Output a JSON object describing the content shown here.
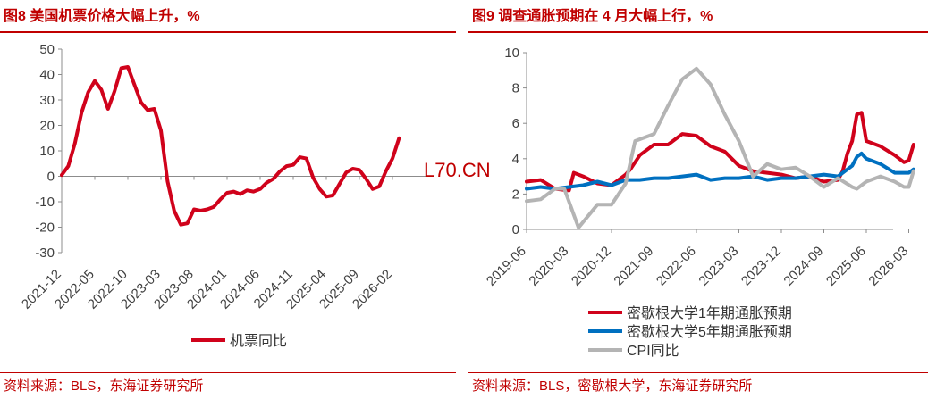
{
  "watermark": "L70.CN",
  "left": {
    "title": "图8  美国机票价格大幅上升，%",
    "source": "资料来源：BLS，东海证券研究所"
  },
  "right": {
    "title": "图9  调查通胀预期在 4 月大幅上行，%",
    "source": "资料来源：BLS，密歇根大学，东海证券研究所"
  },
  "chart_data": [
    {
      "type": "line",
      "title": "图8  美国机票价格大幅上升，%",
      "ylim": [
        -30,
        50
      ],
      "yticks": [
        50,
        40,
        30,
        20,
        10,
        0,
        -10,
        -20,
        -30
      ],
      "xticks": [
        "2021-12",
        "2022-05",
        "2022-10",
        "2023-03",
        "2023-08",
        "2024-01",
        "2024-06",
        "2024-11",
        "2025-04",
        "2025-09",
        "2026-02"
      ],
      "grid": false,
      "legend": "bottom",
      "series": [
        {
          "name": "机票同比",
          "color": "#d0021b",
          "x": [
            "2021-12",
            "2022-01",
            "2022-02",
            "2022-03",
            "2022-04",
            "2022-05",
            "2022-06",
            "2022-07",
            "2022-08",
            "2022-09",
            "2022-10",
            "2022-11",
            "2022-12",
            "2023-01",
            "2023-02",
            "2023-03",
            "2023-04",
            "2023-05",
            "2023-06",
            "2023-07",
            "2023-08",
            "2023-09",
            "2023-10",
            "2023-11",
            "2023-12",
            "2024-01",
            "2024-02",
            "2024-03",
            "2024-04",
            "2024-05",
            "2024-06",
            "2024-07",
            "2024-08",
            "2024-09",
            "2024-10",
            "2024-11",
            "2024-12",
            "2025-01",
            "2025-02",
            "2025-03",
            "2025-04",
            "2025-05",
            "2025-06",
            "2025-07",
            "2025-08",
            "2025-09",
            "2025-10",
            "2025-11",
            "2025-12",
            "2026-01",
            "2026-02",
            "2026-03"
          ],
          "values": [
            0.5,
            4,
            13,
            25,
            33,
            37.5,
            34,
            26.5,
            33.5,
            42.5,
            43,
            36,
            29,
            26,
            26.5,
            18,
            -2,
            -13.5,
            -19,
            -18.5,
            -13,
            -13.5,
            -13,
            -12,
            -9,
            -6.5,
            -6,
            -7,
            -5.5,
            -6,
            -5,
            -2.5,
            -1,
            2,
            4,
            4.5,
            7.5,
            7,
            -0.5,
            -5,
            -8,
            -7.5,
            -3,
            1.5,
            3,
            2.5,
            -1,
            -5,
            -4,
            2,
            7,
            15
          ]
        }
      ]
    },
    {
      "type": "line",
      "title": "图9  调查通胀预期在 4 月大幅上行，%",
      "ylim": [
        0,
        10
      ],
      "yticks": [
        10,
        8,
        6,
        4,
        2,
        0
      ],
      "xticks": [
        "2019-06",
        "2020-03",
        "2020-12",
        "2021-09",
        "2022-06",
        "2023-03",
        "2023-12",
        "2024-09",
        "2025-06",
        "2026-03"
      ],
      "grid": false,
      "legend": "bottom",
      "series": [
        {
          "name": "密歇根大学1年期通胀预期",
          "color": "#d0021b",
          "x": [
            "2019-06",
            "2019-09",
            "2019-12",
            "2020-03",
            "2020-04",
            "2020-06",
            "2020-09",
            "2020-12",
            "2021-03",
            "2021-04",
            "2021-06",
            "2021-09",
            "2021-12",
            "2022-03",
            "2022-06",
            "2022-09",
            "2022-12",
            "2023-03",
            "2023-06",
            "2023-09",
            "2023-12",
            "2024-03",
            "2024-06",
            "2024-09",
            "2024-12",
            "2025-01",
            "2025-02",
            "2025-03",
            "2025-04",
            "2025-05",
            "2025-06",
            "2025-09",
            "2025-12",
            "2026-01",
            "2026-02",
            "2026-03",
            "2026-04"
          ],
          "values": [
            2.7,
            2.8,
            2.3,
            2.2,
            3.2,
            3.0,
            2.6,
            2.5,
            3.1,
            3.4,
            4.2,
            4.8,
            4.8,
            5.4,
            5.3,
            4.7,
            4.4,
            3.6,
            3.3,
            3.2,
            3.1,
            2.9,
            3.0,
            2.7,
            2.8,
            3.3,
            4.3,
            5.0,
            6.5,
            6.6,
            5.0,
            4.7,
            4.2,
            4.0,
            3.8,
            3.9,
            4.8
          ]
        },
        {
          "name": "密歇根大学5年期通胀预期",
          "color": "#0070c0",
          "x": [
            "2019-06",
            "2019-09",
            "2019-12",
            "2020-03",
            "2020-06",
            "2020-09",
            "2020-12",
            "2021-03",
            "2021-06",
            "2021-09",
            "2021-12",
            "2022-03",
            "2022-06",
            "2022-09",
            "2022-12",
            "2023-03",
            "2023-06",
            "2023-09",
            "2023-12",
            "2024-03",
            "2024-06",
            "2024-09",
            "2024-12",
            "2025-03",
            "2025-04",
            "2025-05",
            "2025-06",
            "2025-09",
            "2025-12",
            "2026-03",
            "2026-04"
          ],
          "values": [
            2.3,
            2.4,
            2.3,
            2.4,
            2.5,
            2.7,
            2.5,
            2.8,
            2.8,
            2.9,
            2.9,
            3.0,
            3.1,
            2.8,
            2.9,
            2.9,
            3.0,
            2.8,
            2.9,
            2.9,
            3.0,
            3.1,
            3.0,
            3.6,
            4.1,
            4.3,
            4.0,
            3.7,
            3.2,
            3.2,
            3.4
          ]
        },
        {
          "name": "CPI同比",
          "color": "#b4b4b4",
          "x": [
            "2019-06",
            "2019-09",
            "2019-12",
            "2020-02",
            "2020-05",
            "2020-09",
            "2020-12",
            "2021-03",
            "2021-05",
            "2021-09",
            "2021-12",
            "2022-03",
            "2022-06",
            "2022-09",
            "2022-12",
            "2023-03",
            "2023-06",
            "2023-09",
            "2023-12",
            "2024-03",
            "2024-06",
            "2024-09",
            "2024-12",
            "2025-03",
            "2025-04",
            "2025-06",
            "2025-09",
            "2025-12",
            "2026-02",
            "2026-03",
            "2026-04"
          ],
          "values": [
            1.6,
            1.7,
            2.3,
            2.3,
            0.1,
            1.4,
            1.4,
            2.6,
            5.0,
            5.4,
            7.0,
            8.5,
            9.1,
            8.2,
            6.5,
            5.0,
            3.0,
            3.7,
            3.4,
            3.5,
            3.0,
            2.4,
            2.9,
            2.4,
            2.3,
            2.7,
            3.0,
            2.7,
            2.4,
            2.4,
            3.3
          ]
        }
      ]
    }
  ]
}
